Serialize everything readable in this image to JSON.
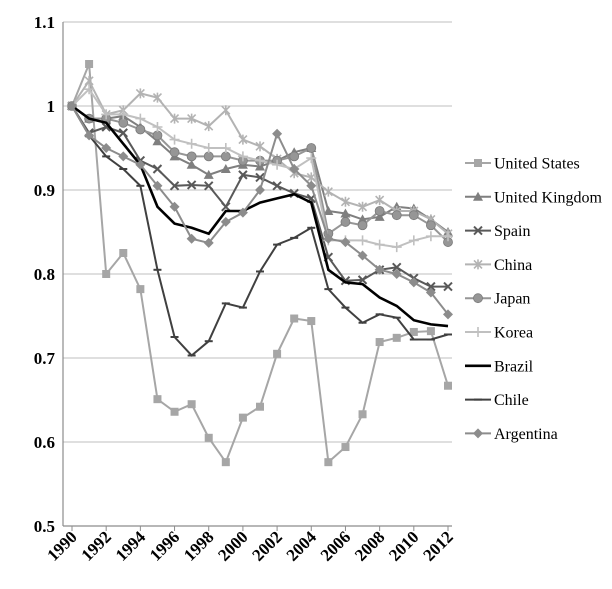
{
  "chart_data": {
    "type": "line",
    "title": "",
    "xlabel": "",
    "ylabel": "",
    "x": [
      1990,
      1991,
      1992,
      1993,
      1994,
      1995,
      1996,
      1997,
      1998,
      1999,
      2000,
      2001,
      2002,
      2003,
      2004,
      2005,
      2006,
      2007,
      2008,
      2009,
      2010,
      2011,
      2012
    ],
    "xticks": [
      "1990",
      "1992",
      "1994",
      "1996",
      "1998",
      "2000",
      "2002",
      "2004",
      "2006",
      "2008",
      "2010",
      "2012"
    ],
    "ylim": [
      0.5,
      1.1
    ],
    "yticks": [
      "0.5",
      "0.6",
      "0.7",
      "0.8",
      "0.9",
      "1",
      "1.1"
    ],
    "grid": "horizontal",
    "legend_position": "right",
    "series": [
      {
        "name": "United States",
        "color": "#a6a6a6",
        "marker": "square",
        "values": [
          1.0,
          1.05,
          0.8,
          0.825,
          0.782,
          0.651,
          0.636,
          0.645,
          0.605,
          0.576,
          0.629,
          0.642,
          0.705,
          0.747,
          0.744,
          0.576,
          0.594,
          0.633,
          0.719,
          0.724,
          0.731,
          0.732,
          0.667
        ]
      },
      {
        "name": "United Kingdom",
        "color": "#7f7f7f",
        "marker": "triangle",
        "values": [
          1.0,
          0.985,
          0.985,
          0.988,
          0.975,
          0.958,
          0.94,
          0.93,
          0.918,
          0.925,
          0.93,
          0.928,
          0.935,
          0.945,
          0.95,
          0.875,
          0.872,
          0.865,
          0.868,
          0.88,
          0.878,
          0.865,
          0.85
        ]
      },
      {
        "name": "Spain",
        "color": "#595959",
        "marker": "x",
        "values": [
          1.0,
          0.968,
          0.975,
          0.968,
          0.935,
          0.925,
          0.905,
          0.906,
          0.905,
          0.88,
          0.918,
          0.915,
          0.905,
          0.896,
          0.89,
          0.82,
          0.792,
          0.793,
          0.805,
          0.808,
          0.795,
          0.785,
          0.785
        ]
      },
      {
        "name": "China",
        "color": "#b3b3b3",
        "marker": "star",
        "values": [
          1.0,
          1.03,
          0.99,
          0.995,
          1.015,
          1.01,
          0.985,
          0.985,
          0.976,
          0.995,
          0.96,
          0.952,
          0.937,
          0.92,
          0.915,
          0.898,
          0.886,
          0.88,
          0.888,
          0.875,
          0.875,
          0.865,
          0.848
        ]
      },
      {
        "name": "Japan",
        "color": "#969696",
        "marker": "circle",
        "values": [
          1.0,
          0.985,
          0.985,
          0.98,
          0.972,
          0.965,
          0.945,
          0.94,
          0.94,
          0.94,
          0.935,
          0.935,
          0.935,
          0.94,
          0.95,
          0.848,
          0.862,
          0.858,
          0.875,
          0.87,
          0.87,
          0.858,
          0.838
        ]
      },
      {
        "name": "Korea",
        "color": "#c0c0c0",
        "marker": "plus",
        "values": [
          1.0,
          1.02,
          0.99,
          0.99,
          0.985,
          0.975,
          0.96,
          0.955,
          0.95,
          0.95,
          0.94,
          0.935,
          0.93,
          0.925,
          0.938,
          0.84,
          0.84,
          0.84,
          0.835,
          0.832,
          0.84,
          0.845,
          0.845
        ]
      },
      {
        "name": "Brazil",
        "color": "#000000",
        "marker": "none",
        "values": [
          1.0,
          0.985,
          0.98,
          0.955,
          0.93,
          0.88,
          0.86,
          0.855,
          0.848,
          0.875,
          0.875,
          0.885,
          0.89,
          0.895,
          0.885,
          0.805,
          0.79,
          0.788,
          0.772,
          0.762,
          0.745,
          0.74,
          0.738
        ]
      },
      {
        "name": "Chile",
        "color": "#404040",
        "marker": "dash",
        "values": [
          1.0,
          0.965,
          0.94,
          0.925,
          0.905,
          0.805,
          0.725,
          0.703,
          0.72,
          0.765,
          0.76,
          0.803,
          0.835,
          0.843,
          0.855,
          0.782,
          0.76,
          0.742,
          0.752,
          0.748,
          0.722,
          0.722,
          0.728
        ]
      },
      {
        "name": "Argentina",
        "color": "#8c8c8c",
        "marker": "diamond",
        "values": [
          1.0,
          0.965,
          0.95,
          0.94,
          0.93,
          0.905,
          0.88,
          0.842,
          0.837,
          0.862,
          0.873,
          0.9,
          0.967,
          0.925,
          0.905,
          0.842,
          0.838,
          0.822,
          0.805,
          0.8,
          0.79,
          0.778,
          0.752
        ]
      }
    ]
  }
}
